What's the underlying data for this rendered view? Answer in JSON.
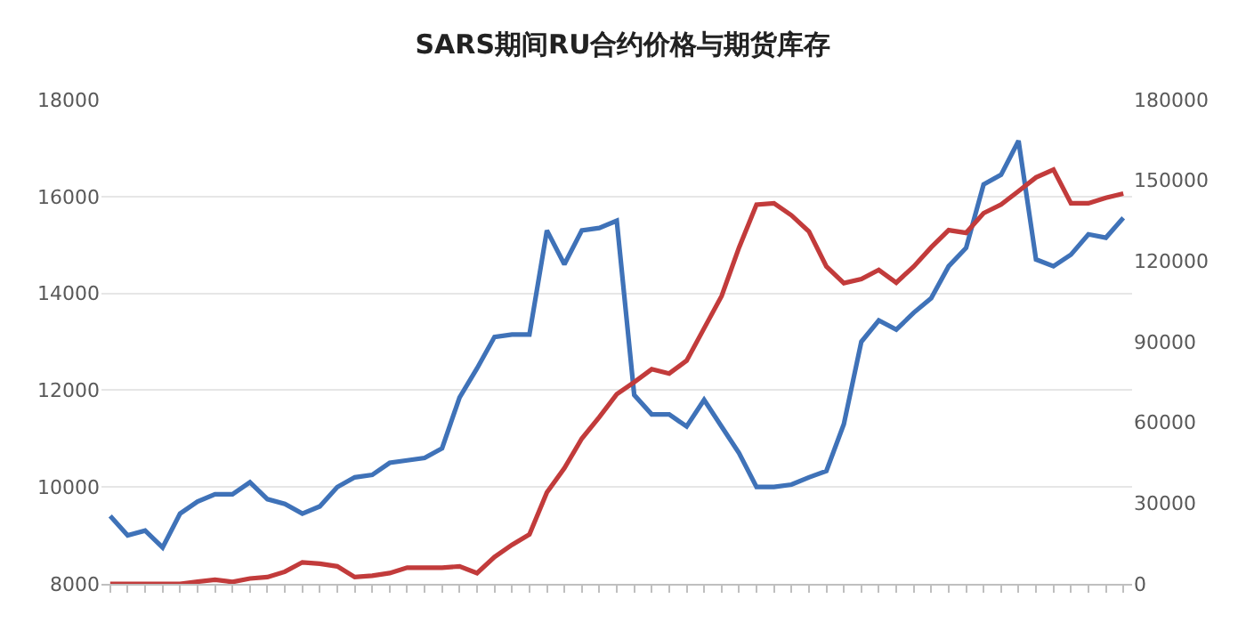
{
  "chart_data": {
    "type": "line",
    "title": "SARS期间RU合约价格与期货库存",
    "categories": [
      null,
      null,
      null,
      null,
      null,
      null,
      null,
      null,
      null,
      null,
      null,
      null,
      null,
      null,
      null,
      null,
      null,
      null,
      null,
      null,
      null,
      null,
      null,
      null,
      null,
      null,
      null,
      null,
      null,
      null,
      null,
      null,
      null,
      null,
      null,
      null,
      null,
      null,
      null,
      null,
      null,
      null,
      null,
      null,
      null,
      null,
      null,
      null,
      null,
      null,
      null,
      null,
      null,
      null,
      null,
      null,
      null,
      null,
      null
    ],
    "series": [
      {
        "color": "#3f72b8",
        "values": [
          9400,
          9000,
          9100,
          8750,
          9450,
          9700,
          9850,
          9850,
          10100,
          9750,
          9650,
          9450,
          9600,
          10000,
          10200,
          10250,
          10500,
          10550,
          10600,
          10800,
          11850,
          12450,
          13100,
          13150,
          13150,
          15300,
          14600,
          15300,
          15350,
          15500,
          11900,
          11500,
          11500,
          11250,
          11800,
          11250,
          10700,
          10000,
          10000,
          10050,
          10200,
          10330,
          11300,
          13000,
          13440,
          13250,
          13600,
          13900,
          14560,
          14940,
          16250,
          16450,
          17150,
          14700,
          14560,
          14800,
          15220,
          15150,
          15560
        ]
      },
      {
        "color": "#c23b3b",
        "axis": "y2",
        "values": [
          0,
          0,
          0,
          0,
          0,
          800,
          1500,
          700,
          2000,
          2500,
          4500,
          8000,
          7500,
          6500,
          2500,
          3000,
          4000,
          6000,
          6000,
          6000,
          6500,
          4000,
          10000,
          14500,
          18400,
          34000,
          43000,
          54000,
          62000,
          70500,
          75000,
          79800,
          78200,
          83000,
          95000,
          107000,
          125000,
          141000,
          141500,
          137000,
          131000,
          118000,
          111800,
          113300,
          116700,
          112000,
          118000,
          125100,
          131500,
          130500,
          137800,
          141000,
          146000,
          151100,
          154000,
          141500,
          141500,
          143500,
          145100
        ]
      }
    ],
    "ylim": [
      8000,
      18000
    ],
    "yticks": [
      8000,
      10000,
      12000,
      14000,
      16000,
      18000
    ],
    "y2lim": [
      0,
      180000
    ],
    "y2ticks": [
      0,
      30000,
      60000,
      90000,
      120000,
      150000,
      180000
    ],
    "grid": "y",
    "tick_labels": "y"
  }
}
